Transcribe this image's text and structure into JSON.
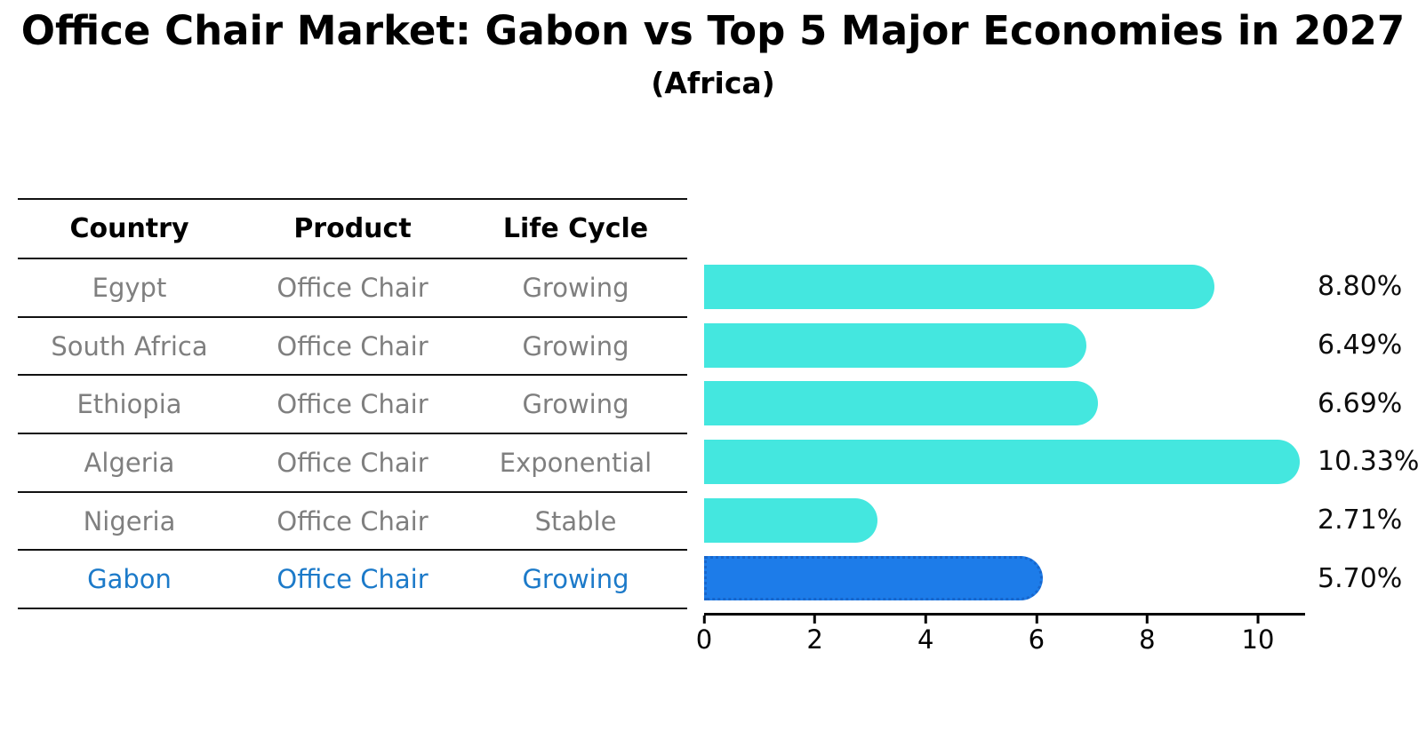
{
  "title": "Office Chair Market: Gabon vs Top 5 Major Economies in 2027",
  "subtitle": "(Africa)",
  "table": {
    "headers": [
      "Country",
      "Product",
      "Life Cycle"
    ],
    "rows": [
      {
        "country": "Egypt",
        "product": "Office Chair",
        "life_cycle": "Growing",
        "highlight": false
      },
      {
        "country": "South Africa",
        "product": "Office Chair",
        "life_cycle": "Growing",
        "highlight": false
      },
      {
        "country": "Ethiopia",
        "product": "Office Chair",
        "life_cycle": "Growing",
        "highlight": false
      },
      {
        "country": "Algeria",
        "product": "Office Chair",
        "life_cycle": "Exponential",
        "highlight": false
      },
      {
        "country": "Nigeria",
        "product": "Office Chair",
        "life_cycle": "Stable",
        "highlight": false
      },
      {
        "country": "Gabon",
        "product": "Office Chair",
        "life_cycle": "Growing",
        "highlight": true
      }
    ]
  },
  "chart_data": {
    "type": "bar",
    "orientation": "horizontal",
    "title": "Office Chair Market: Gabon vs Top 5 Major Economies in 2027",
    "subtitle": "(Africa)",
    "categories": [
      "Egypt",
      "South Africa",
      "Ethiopia",
      "Algeria",
      "Nigeria",
      "Gabon"
    ],
    "values": [
      8.8,
      6.49,
      6.69,
      10.33,
      2.71,
      5.7
    ],
    "labels": [
      "8.80%",
      "6.49%",
      "6.69%",
      "10.33%",
      "2.71%",
      "5.70%"
    ],
    "unit": "%",
    "xlim": [
      0,
      10.85
    ],
    "xticks": [
      0,
      2,
      4,
      6,
      8,
      10
    ],
    "grid": false,
    "legend": "none",
    "highlight_index": 5,
    "bar_color": "#44e7df",
    "highlight_color": "#1d7ce9",
    "highlight_border_color": "#1766cc",
    "highlight_text_color": "#1c7ac9",
    "text_color": "#7f7f7f"
  }
}
